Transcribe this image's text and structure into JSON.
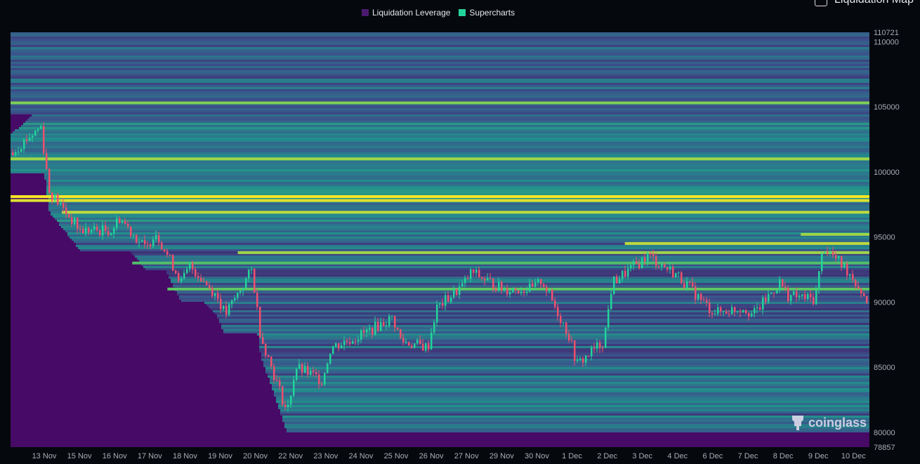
{
  "header": {
    "toggle_label": "Liquidation Map"
  },
  "legend": [
    {
      "label": "Liquidation Leverage",
      "color": "#4a1a6e"
    },
    {
      "label": "Supercharts",
      "color": "#22d39a"
    }
  ],
  "watermark": "coinglass",
  "chart_data": {
    "type": "heatmap",
    "title": "",
    "x_ticks": [
      "13 Nov",
      "15 Nov",
      "16 Nov",
      "17 Nov",
      "18 Nov",
      "19 Nov",
      "20 Nov",
      "22 Nov",
      "23 Nov",
      "24 Nov",
      "25 Nov",
      "26 Nov",
      "27 Nov",
      "29 Nov",
      "30 Nov",
      "1 Dec",
      "2 Dec",
      "3 Dec",
      "4 Dec",
      "6 Dec",
      "7 Dec",
      "8 Dec",
      "9 Dec",
      "10 Dec"
    ],
    "y_ticks": [
      110721,
      110000,
      105000,
      100000,
      95000,
      90000,
      85000,
      80000,
      78857
    ],
    "ylim": [
      78857,
      110721
    ],
    "colorscale": [
      "#440154",
      "#3b528b",
      "#21918c",
      "#5ec962",
      "#fde725"
    ],
    "candle_colors": {
      "up": "#22d39a",
      "down": "#f0506e"
    },
    "price_path": [
      [
        "12 Nov",
        101500
      ],
      [
        "13 Nov",
        103500
      ],
      [
        "13 Nov",
        98500
      ],
      [
        "15 Nov",
        95500
      ],
      [
        "16 Nov",
        95500
      ],
      [
        "16 Nov",
        96500
      ],
      [
        "17 Nov",
        94000
      ],
      [
        "17 Nov",
        95500
      ],
      [
        "18 Nov",
        91500
      ],
      [
        "18 Nov",
        92800
      ],
      [
        "19 Nov",
        90500
      ],
      [
        "19 Nov",
        89000
      ],
      [
        "20 Nov",
        92500
      ],
      [
        "20 Nov",
        87500
      ],
      [
        "22 Nov",
        81500
      ],
      [
        "22 Nov",
        85000
      ],
      [
        "23 Nov",
        84000
      ],
      [
        "23 Nov",
        86500
      ],
      [
        "24 Nov",
        87500
      ],
      [
        "25 Nov",
        88800
      ],
      [
        "25 Nov",
        87000
      ],
      [
        "26 Nov",
        86500
      ],
      [
        "26 Nov",
        89500
      ],
      [
        "27 Nov",
        91300
      ],
      [
        "27 Nov",
        92300
      ],
      [
        "29 Nov",
        91000
      ],
      [
        "30 Nov",
        91000
      ],
      [
        "30 Nov",
        91700
      ],
      [
        "1 Dec",
        87500
      ],
      [
        "1 Dec",
        85200
      ],
      [
        "2 Dec",
        87000
      ],
      [
        "2 Dec",
        91500
      ],
      [
        "3 Dec",
        93000
      ],
      [
        "3 Dec",
        93600
      ],
      [
        "4 Dec",
        92000
      ],
      [
        "6 Dec",
        89500
      ],
      [
        "6 Dec",
        89200
      ],
      [
        "7 Dec",
        89600
      ],
      [
        "7 Dec",
        89000
      ],
      [
        "8 Dec",
        91500
      ],
      [
        "8 Dec",
        90500
      ],
      [
        "9 Dec",
        90200
      ],
      [
        "9 Dec",
        94300
      ],
      [
        "10 Dec",
        92200
      ],
      [
        "10 Dec",
        90000
      ]
    ],
    "highlight_levels": [
      {
        "price": 105300,
        "intensity": 0.8,
        "from": "12 Nov"
      },
      {
        "price": 101000,
        "intensity": 0.85,
        "from": "12 Nov"
      },
      {
        "price": 98100,
        "intensity": 1.0,
        "from": "12 Nov"
      },
      {
        "price": 97800,
        "intensity": 0.95,
        "from": "12 Nov"
      },
      {
        "price": 96900,
        "intensity": 0.9,
        "from": "15 Nov"
      },
      {
        "price": 95200,
        "intensity": 0.85,
        "from": "9 Dec"
      },
      {
        "price": 94500,
        "intensity": 0.9,
        "from": "3 Dec"
      },
      {
        "price": 93800,
        "intensity": 0.85,
        "from": "20 Nov"
      },
      {
        "price": 93000,
        "intensity": 0.7,
        "from": "17 Nov"
      },
      {
        "price": 91000,
        "intensity": 0.75,
        "from": "18 Nov"
      }
    ]
  }
}
